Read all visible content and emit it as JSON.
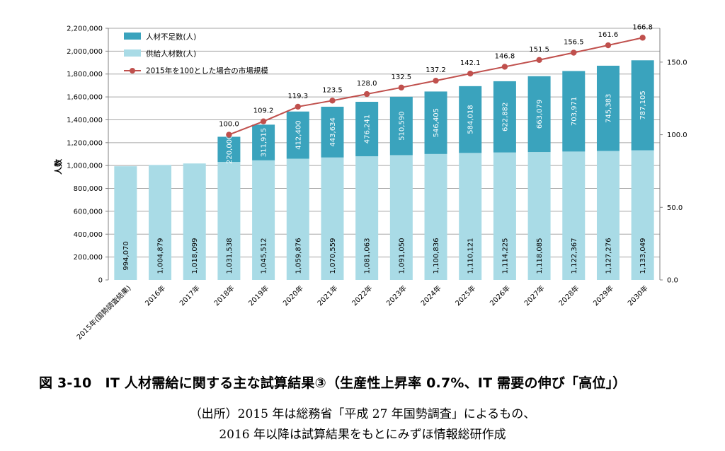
{
  "chart_data": {
    "type": "bar",
    "stacked": true,
    "categories": [
      "2015年(国勢調査結果)",
      "2016年",
      "2017年",
      "2018年",
      "2019年",
      "2020年",
      "2021年",
      "2022年",
      "2023年",
      "2024年",
      "2025年",
      "2026年",
      "2027年",
      "2028年",
      "2029年",
      "2030年"
    ],
    "series": [
      {
        "name": "供給人材数(人)",
        "kind": "bar",
        "axis": "left",
        "color": "#a9dbe6",
        "values": [
          994070,
          1004879,
          1018099,
          1031538,
          1045512,
          1059876,
          1070559,
          1081063,
          1091050,
          1100836,
          1110121,
          1114225,
          1118085,
          1122367,
          1127276,
          1133049
        ],
        "labels": [
          "994,070",
          "1,004,879",
          "1,018,099",
          "1,031,538",
          "1,045,512",
          "1,059,876",
          "1,070,559",
          "1,081,063",
          "1,091,050",
          "1,100,836",
          "1,110,121",
          "1,114,225",
          "1,118,085",
          "1,122,367",
          "1,127,276",
          "1,133,049"
        ]
      },
      {
        "name": "人材不足数(人)",
        "kind": "bar",
        "axis": "left",
        "color": "#3aa3bd",
        "values": [
          null,
          null,
          null,
          220000,
          311915,
          412400,
          443634,
          476241,
          510590,
          546405,
          584018,
          622882,
          663079,
          703971,
          745383,
          787105
        ],
        "labels": [
          "",
          "",
          "",
          "220,000",
          "311,915",
          "412,400",
          "443,634",
          "476,241",
          "510,590",
          "546,405",
          "584,018",
          "622,882",
          "663,079",
          "703,971",
          "745,383",
          "787,105"
        ]
      },
      {
        "name": "2015年を100とした場合の市場規模",
        "kind": "line",
        "axis": "right",
        "color": "#c0504d",
        "values": [
          null,
          null,
          null,
          100.0,
          109.2,
          119.3,
          123.5,
          128.0,
          132.5,
          137.2,
          142.1,
          146.8,
          151.5,
          156.5,
          161.6,
          166.8
        ],
        "labels": [
          "",
          "",
          "",
          "100.0",
          "109.2",
          "119.3",
          "123.5",
          "128.0",
          "132.5",
          "137.2",
          "142.1",
          "146.8",
          "151.5",
          "156.5",
          "161.6",
          "166.8"
        ]
      }
    ],
    "ylabel": "人数",
    "ylim": [
      0,
      2200000
    ],
    "yticks": [
      "0",
      "200,000",
      "400,000",
      "600,000",
      "800,000",
      "1,000,000",
      "1,200,000",
      "1,400,000",
      "1,600,000",
      "1,800,000",
      "2,000,000",
      "2,200,000"
    ],
    "y2lim": [
      0,
      173.3
    ],
    "y2ticks": [
      {
        "value": 0,
        "label": "0.0"
      },
      {
        "value": 50,
        "label": "50.0"
      },
      {
        "value": 100,
        "label": "100.0"
      },
      {
        "value": 150,
        "label": "150.0"
      }
    ],
    "grid": true,
    "legend": "top-left"
  },
  "caption": "図 3-10　IT 人材需給に関する主な試算結果③（生産性上昇率 0.7%、IT 需要の伸び「高位」）",
  "source_line1": "（出所）2015 年は総務省「平成 27 年国勢調査」によるもの、",
  "source_line2": "2016 年以降は試算結果をもとにみずほ情報総研作成"
}
